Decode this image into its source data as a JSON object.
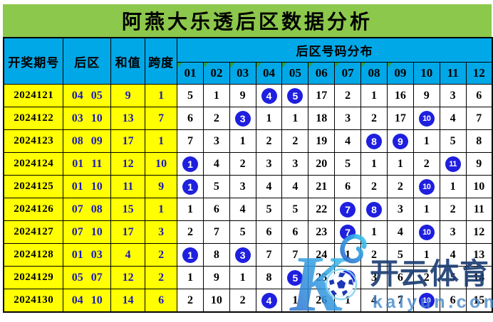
{
  "title": "阿燕大乐透后区数据分析",
  "chart_data": {
    "type": "table",
    "title": "阿燕大乐透后区数据分析",
    "col_headers": {
      "period": "开奖期号",
      "rear": "后区",
      "sum": "和值",
      "span": "跨度",
      "dist_group": "后区号码分布"
    },
    "dist_columns": [
      {
        "label": "01",
        "flag": true
      },
      {
        "label": "02",
        "flag": true
      },
      {
        "label": "03",
        "flag": true
      },
      {
        "label": "04",
        "flag": true
      },
      {
        "label": "05",
        "flag": true
      },
      {
        "label": "06",
        "flag": true
      },
      {
        "label": "07",
        "flag": true
      },
      {
        "label": "08",
        "flag": true
      },
      {
        "label": "09",
        "flag": true
      },
      {
        "label": "10",
        "flag": false
      },
      {
        "label": "11",
        "flag": false
      },
      {
        "label": "12",
        "flag": false
      }
    ],
    "rows": [
      {
        "period": "2024121",
        "rear": "04 05",
        "sum": "9",
        "span": "1",
        "dist": [
          "5",
          "1",
          "9",
          "4*",
          "5*",
          "17",
          "2",
          "1",
          "16",
          "9",
          "3",
          "6"
        ]
      },
      {
        "period": "2024122",
        "rear": "03 10",
        "sum": "13",
        "span": "7",
        "dist": [
          "6",
          "2",
          "3*",
          "1",
          "1",
          "18",
          "3",
          "2",
          "17",
          "10*",
          "4",
          "7"
        ]
      },
      {
        "period": "2024123",
        "rear": "08 09",
        "sum": "17",
        "span": "1",
        "dist": [
          "7",
          "3",
          "1",
          "2",
          "2",
          "19",
          "4",
          "8*",
          "9*",
          "1",
          "5",
          "8"
        ]
      },
      {
        "period": "2024124",
        "rear": "01 11",
        "sum": "12",
        "span": "10",
        "dist": [
          "1*",
          "4",
          "2",
          "3",
          "3",
          "20",
          "5",
          "1",
          "1",
          "2",
          "11*",
          "9"
        ]
      },
      {
        "period": "2024125",
        "rear": "01 10",
        "sum": "11",
        "span": "9",
        "dist": [
          "1*",
          "5",
          "3",
          "4",
          "4",
          "21",
          "6",
          "2",
          "2",
          "10*",
          "1",
          "10"
        ]
      },
      {
        "period": "2024126",
        "rear": "07 08",
        "sum": "15",
        "span": "1",
        "dist": [
          "1",
          "6",
          "4",
          "5",
          "5",
          "22",
          "7*",
          "8*",
          "3",
          "1",
          "2",
          "11"
        ]
      },
      {
        "period": "2024127",
        "rear": "07 10",
        "sum": "17",
        "span": "3",
        "dist": [
          "2",
          "7",
          "5",
          "6",
          "6",
          "23",
          "7*",
          "1",
          "4",
          "10*",
          "3",
          "12"
        ]
      },
      {
        "period": "2024128",
        "rear": "01 03",
        "sum": "4",
        "span": "2",
        "dist": [
          "1*",
          "8",
          "3*",
          "7",
          "7",
          "24",
          "1",
          "2",
          "5",
          "1",
          "4",
          "13"
        ]
      },
      {
        "period": "2024129",
        "rear": "05 07",
        "sum": "12",
        "span": "2",
        "dist": [
          "1",
          "9",
          "1",
          "8",
          "5*",
          "25",
          "7*",
          "3",
          "6",
          "2",
          "5",
          "14"
        ]
      },
      {
        "period": "2024130",
        "rear": "04 10",
        "sum": "14",
        "span": "6",
        "dist": [
          "2",
          "10",
          "2",
          "4*",
          "1",
          "26",
          "1",
          "4",
          "7",
          "10*",
          "6",
          "15"
        ]
      }
    ]
  },
  "watermark": {
    "k_letter": "K",
    "brand": "开云体育",
    "domain": "kaiyun.com"
  },
  "colors": {
    "title_bg": "#8cc84b",
    "header_bg": "#00a8e8",
    "row_bg": "#ffff00",
    "hit_circle": "#1f1fdf",
    "blue_text": "#1a1ab8",
    "flag_green": "#2f9e3e",
    "brand_navy": "#1c3e73",
    "domain_blue": "#4287c8"
  }
}
